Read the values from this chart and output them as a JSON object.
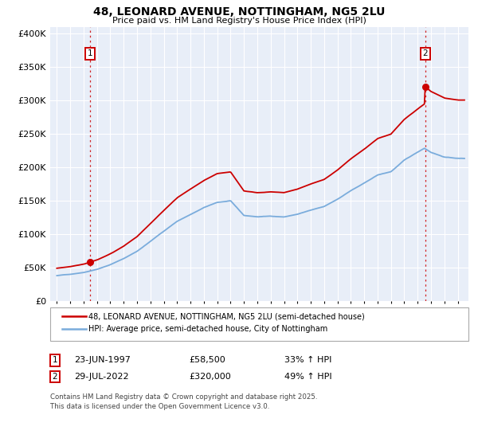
{
  "title": "48, LEONARD AVENUE, NOTTINGHAM, NG5 2LU",
  "subtitle": "Price paid vs. HM Land Registry's House Price Index (HPI)",
  "legend_line1": "48, LEONARD AVENUE, NOTTINGHAM, NG5 2LU (semi-detached house)",
  "legend_line2": "HPI: Average price, semi-detached house, City of Nottingham",
  "footnote": "Contains HM Land Registry data © Crown copyright and database right 2025.\nThis data is licensed under the Open Government Licence v3.0.",
  "sale1_date": "23-JUN-1997",
  "sale1_price": 58500,
  "sale1_label": "33% ↑ HPI",
  "sale2_date": "29-JUL-2022",
  "sale2_price": 320000,
  "sale2_label": "49% ↑ HPI",
  "sale1_x": 1997.47,
  "sale2_x": 2022.56,
  "red_color": "#cc0000",
  "blue_color": "#7aacdc",
  "plot_bg": "#e8eef8",
  "xlim_low": 1994.5,
  "xlim_high": 2025.8,
  "ylim_low": 0,
  "ylim_high": 410000,
  "hpi_knots_x": [
    1995,
    1996,
    1997,
    1998,
    1999,
    2000,
    2001,
    2002,
    2003,
    2004,
    2005,
    2006,
    2007,
    2008,
    2009,
    2010,
    2011,
    2012,
    2013,
    2014,
    2015,
    2016,
    2017,
    2018,
    2019,
    2020,
    2021,
    2022,
    2022.5,
    2023,
    2024,
    2025
  ],
  "hpi_knots_y": [
    38000,
    40000,
    43000,
    48000,
    55000,
    64000,
    75000,
    90000,
    105000,
    120000,
    130000,
    140000,
    148000,
    150000,
    128000,
    126000,
    127000,
    126000,
    130000,
    136000,
    141000,
    152000,
    165000,
    176000,
    188000,
    193000,
    210000,
    222000,
    228000,
    222000,
    215000,
    213000
  ]
}
